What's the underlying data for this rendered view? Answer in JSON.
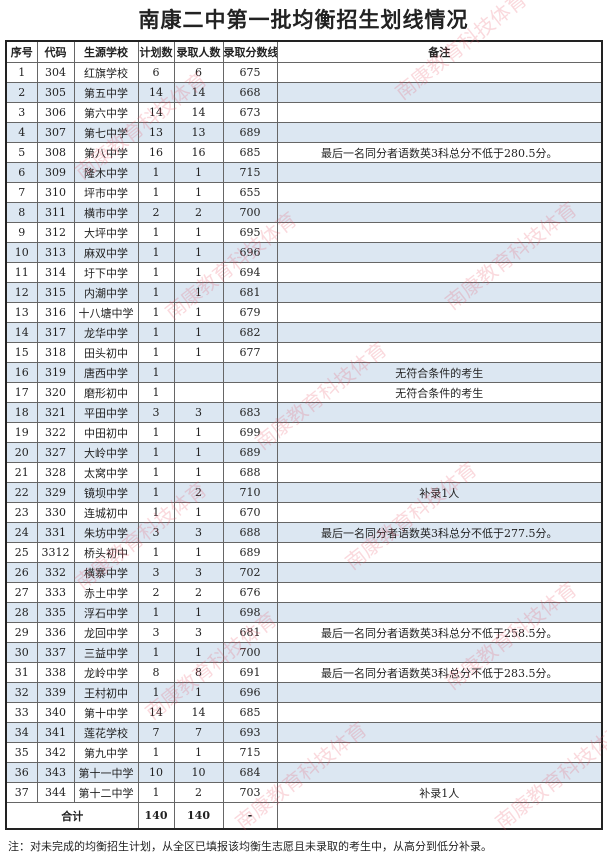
{
  "title": "南康二中第一批均衡招生划线情况",
  "headers": [
    "序号",
    "代码",
    "生源学校",
    "计划数",
    "录取人数",
    "录取分数线",
    "备注"
  ],
  "rows": [
    [
      "1",
      "304",
      "红旗学校",
      "6",
      "6",
      "675",
      ""
    ],
    [
      "2",
      "305",
      "第五中学",
      "14",
      "14",
      "668",
      ""
    ],
    [
      "3",
      "306",
      "第六中学",
      "14",
      "14",
      "673",
      ""
    ],
    [
      "4",
      "307",
      "第七中学",
      "13",
      "13",
      "689",
      ""
    ],
    [
      "5",
      "308",
      "第八中学",
      "16",
      "16",
      "685",
      "最后一名同分者语数英3科总分不低于280.5分。"
    ],
    [
      "6",
      "309",
      "隆木中学",
      "1",
      "1",
      "715",
      ""
    ],
    [
      "7",
      "310",
      "坪市中学",
      "1",
      "1",
      "655",
      ""
    ],
    [
      "8",
      "311",
      "横市中学",
      "2",
      "2",
      "700",
      ""
    ],
    [
      "9",
      "312",
      "大坪中学",
      "1",
      "1",
      "695",
      ""
    ],
    [
      "10",
      "313",
      "麻双中学",
      "1",
      "1",
      "696",
      ""
    ],
    [
      "11",
      "314",
      "圩下中学",
      "1",
      "1",
      "694",
      ""
    ],
    [
      "12",
      "315",
      "内潮中学",
      "1",
      "1",
      "681",
      ""
    ],
    [
      "13",
      "316",
      "十八塘中学",
      "1",
      "1",
      "679",
      ""
    ],
    [
      "14",
      "317",
      "龙华中学",
      "1",
      "1",
      "682",
      ""
    ],
    [
      "15",
      "318",
      "田头初中",
      "1",
      "1",
      "677",
      ""
    ],
    [
      "16",
      "319",
      "唐西中学",
      "1",
      "",
      "",
      "无符合条件的考生"
    ],
    [
      "17",
      "320",
      "磨形初中",
      "1",
      "",
      "",
      "无符合条件的考生"
    ],
    [
      "18",
      "321",
      "平田中学",
      "3",
      "3",
      "683",
      ""
    ],
    [
      "19",
      "322",
      "中田初中",
      "1",
      "1",
      "699",
      ""
    ],
    [
      "20",
      "327",
      "大岭中学",
      "1",
      "1",
      "689",
      ""
    ],
    [
      "21",
      "328",
      "太窝中学",
      "1",
      "1",
      "688",
      ""
    ],
    [
      "22",
      "329",
      "镜坝中学",
      "1",
      "2",
      "710",
      "补录1人"
    ],
    [
      "23",
      "330",
      "连城初中",
      "1",
      "1",
      "670",
      ""
    ],
    [
      "24",
      "331",
      "朱坊中学",
      "3",
      "3",
      "688",
      "最后一名同分者语数英3科总分不低于277.5分。"
    ],
    [
      "25",
      "3312",
      "桥头初中",
      "1",
      "1",
      "689",
      ""
    ],
    [
      "26",
      "332",
      "横寨中学",
      "3",
      "3",
      "702",
      ""
    ],
    [
      "27",
      "333",
      "赤土中学",
      "2",
      "2",
      "676",
      ""
    ],
    [
      "28",
      "335",
      "浮石中学",
      "1",
      "1",
      "698",
      ""
    ],
    [
      "29",
      "336",
      "龙回中学",
      "3",
      "3",
      "681",
      "最后一名同分者语数英3科总分不低于258.5分。"
    ],
    [
      "30",
      "337",
      "三益中学",
      "1",
      "1",
      "700",
      ""
    ],
    [
      "31",
      "338",
      "龙岭中学",
      "8",
      "8",
      "691",
      "最后一名同分者语数英3科总分不低于283.5分。"
    ],
    [
      "32",
      "339",
      "王村初中",
      "1",
      "1",
      "696",
      ""
    ],
    [
      "33",
      "340",
      "第十中学",
      "14",
      "14",
      "685",
      ""
    ],
    [
      "34",
      "341",
      "莲花学校",
      "7",
      "7",
      "693",
      ""
    ],
    [
      "35",
      "342",
      "第九中学",
      "1",
      "1",
      "715",
      ""
    ],
    [
      "36",
      "343",
      "第十一中学",
      "10",
      "10",
      "684",
      ""
    ],
    [
      "37",
      "344",
      "第十二中学",
      "1",
      "2",
      "703",
      "补录1人"
    ]
  ],
  "total": {
    "label": "合计",
    "plan": "140",
    "admitted": "140",
    "score": "-",
    "remark": ""
  },
  "footnote": "注：对未完成的均衡招生计划，从全区已填报该均衡生志愿且未录取的考生中，从高分到低分补录。",
  "watermark": "南康教育科技体育",
  "colors": {
    "alt_row": "#dce7f2",
    "watermark": "#e65064"
  }
}
